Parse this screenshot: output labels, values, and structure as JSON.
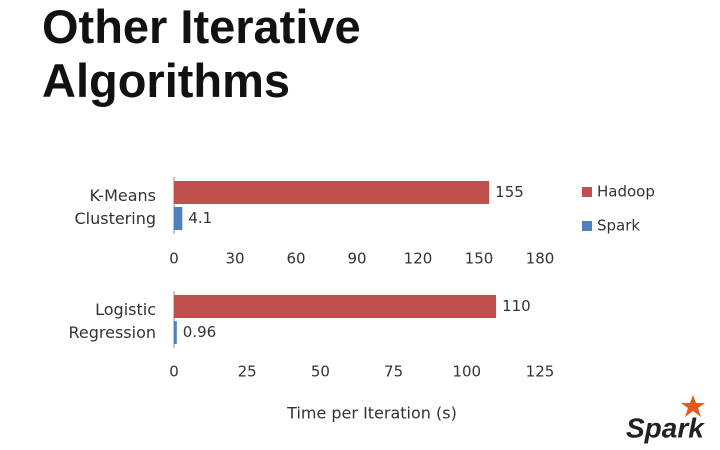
{
  "title": "Other Iterative Algorithms",
  "logo": "Spark",
  "chart_data": [
    {
      "type": "bar",
      "orientation": "horizontal",
      "categories": [
        "K-Means Clustering"
      ],
      "series": [
        {
          "name": "Hadoop",
          "color": "#c0504d",
          "values": [
            155
          ]
        },
        {
          "name": "Spark",
          "color": "#4f81bd",
          "values": [
            4.1
          ]
        }
      ],
      "xlim": [
        0,
        180
      ],
      "xticks": [
        0,
        30,
        60,
        90,
        120,
        150,
        180
      ],
      "legend": "right"
    },
    {
      "type": "bar",
      "orientation": "horizontal",
      "categories": [
        "Logistic Regression"
      ],
      "series": [
        {
          "color": "#c0504d",
          "values": [
            110
          ]
        },
        {
          "color": "#4f81bd",
          "values": [
            0.96
          ]
        }
      ],
      "xlim": [
        0,
        125
      ],
      "xticks": [
        0,
        25,
        50,
        75,
        100,
        125
      ],
      "xlabel": "Time per Iteration (s)"
    }
  ]
}
